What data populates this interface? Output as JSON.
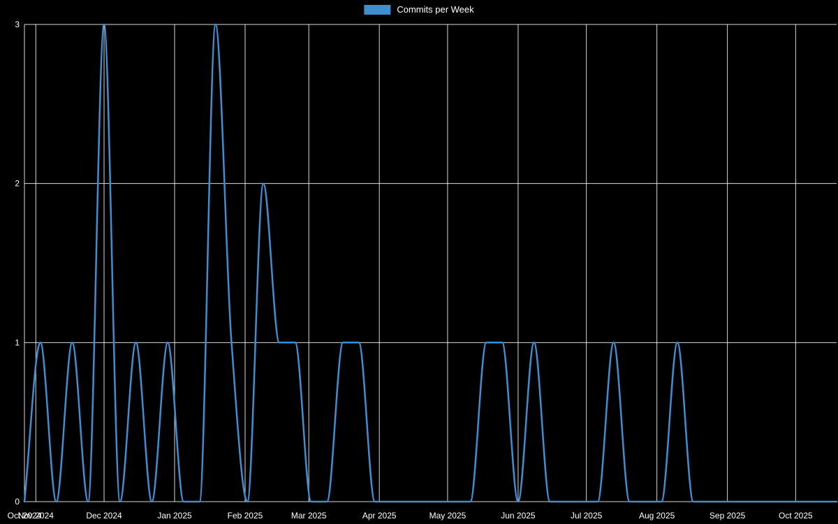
{
  "chart_data": {
    "type": "line",
    "title": "",
    "legend": {
      "position": "top",
      "label": "Commits per Week"
    },
    "x": {
      "start_date": "2024-10-27",
      "week_interval_days": 7,
      "axis_min_day": 0,
      "axis_max_day": 357
    },
    "ylim": [
      0,
      3
    ],
    "grid": true,
    "series": [
      {
        "name": "Commits per Week",
        "color": "#3e8ed0",
        "line_width": 2.5,
        "values": [
          0,
          1,
          0,
          1,
          0,
          3,
          0,
          1,
          0,
          1,
          0,
          0,
          3,
          1,
          0,
          2,
          1,
          1,
          0,
          0,
          1,
          1,
          0,
          0,
          0,
          0,
          0,
          0,
          0,
          1,
          1,
          0,
          1,
          0,
          0,
          0,
          0,
          1,
          0,
          0,
          0,
          1,
          0,
          0,
          0,
          0,
          0,
          0,
          0,
          0,
          0,
          0
        ]
      }
    ],
    "x_ticks": [
      {
        "label": "Oct 2024",
        "day": 0
      },
      {
        "label": "Nov 2024",
        "day": 5
      },
      {
        "label": "Dec 2024",
        "day": 35
      },
      {
        "label": "Jan 2025",
        "day": 66
      },
      {
        "label": "Feb 2025",
        "day": 97
      },
      {
        "label": "Mar 2025",
        "day": 125
      },
      {
        "label": "Apr 2025",
        "day": 156
      },
      {
        "label": "May 2025",
        "day": 186
      },
      {
        "label": "Jun 2025",
        "day": 217
      },
      {
        "label": "Jul 2025",
        "day": 247
      },
      {
        "label": "Aug 2025",
        "day": 278
      },
      {
        "label": "Sep 2025",
        "day": 309
      },
      {
        "label": "Oct 2025",
        "day": 339
      }
    ],
    "y_ticks": [
      {
        "label": "0",
        "value": 0
      },
      {
        "label": "1",
        "value": 1
      },
      {
        "label": "2",
        "value": 2
      },
      {
        "label": "3",
        "value": 3
      }
    ],
    "colors": {
      "background": "#000000",
      "grid": "#ffffff",
      "text": "#ffffff",
      "accent": "#3e8ed0"
    }
  }
}
